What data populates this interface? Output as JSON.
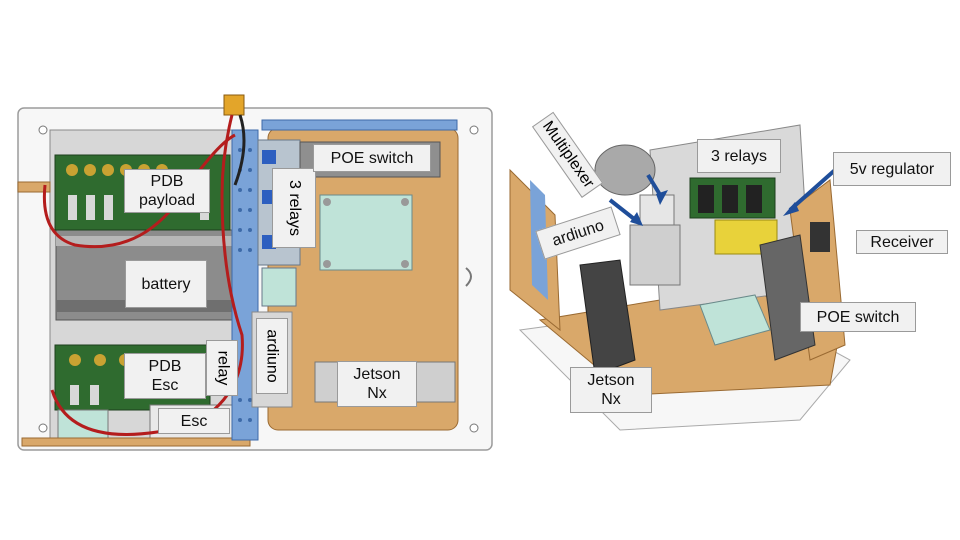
{
  "left_view": {
    "labels": {
      "pdb_payload": "PDB\npayload",
      "battery": "battery",
      "pdb_esc": "PDB\nEsc",
      "esc": "Esc",
      "relay": "relay",
      "ardiuno": "ardiuno",
      "three_relays": "3 relays",
      "poe_switch": "POE switch",
      "jetson_nx": "Jetson\nNx"
    }
  },
  "right_view": {
    "labels": {
      "multiplexer": "Multiplexer",
      "three_relays": "3 relays",
      "five_v_regulator": "5v regulator",
      "ardiuno": "ardiuno",
      "receiver": "Receiver",
      "poe_switch": "POE switch",
      "jetson_nx": "Jetson\nNx"
    }
  },
  "colors": {
    "arrow": "#1f4e9a",
    "wood": "#d9a86a",
    "pcb": "#2f6b2f",
    "battery": "#8a8a8a",
    "label_bg": "#f1f1f1"
  }
}
